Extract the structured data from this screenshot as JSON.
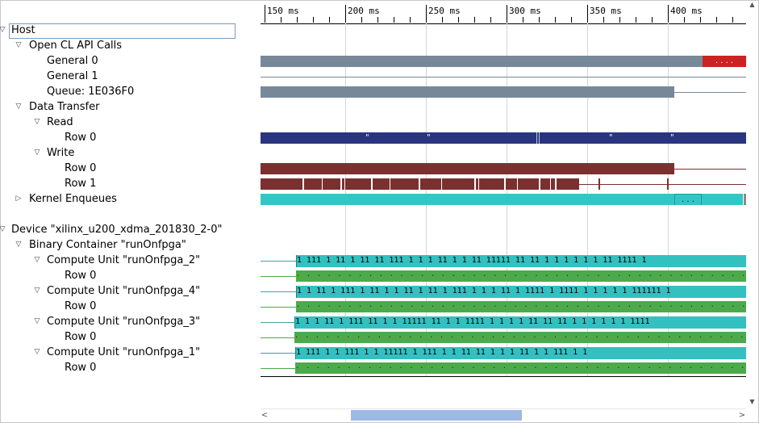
{
  "tree": {
    "host": "Host",
    "open_cl_api_calls": "Open CL API Calls",
    "general_0": "General 0",
    "general_1": "General 1",
    "queue": "Queue: 1E036F0",
    "data_transfer": "Data Transfer",
    "read": "Read",
    "read_row_0": "Row 0",
    "write": "Write",
    "write_row_0": "Row 0",
    "write_row_1": "Row 1",
    "kernel_enqueues": "Kernel Enqueues",
    "device": "Device \"xilinx_u200_xdma_201830_2-0\"",
    "binary_container": "Binary Container \"runOnfpga\"",
    "cu_2": "Compute Unit \"runOnfpga_2\"",
    "cu_2_row": "Row 0",
    "cu_4": "Compute Unit \"runOnfpga_4\"",
    "cu_4_row": "Row 0",
    "cu_3": "Compute Unit \"runOnfpga_3\"",
    "cu_3_row": "Row 0",
    "cu_1": "Compute Unit \"runOnfpga_1\"",
    "cu_1_row": "Row 0"
  },
  "ruler": {
    "unit_labels": [
      "150 ms",
      "200 ms",
      "250 ms",
      "300 ms",
      "350 ms",
      "400 ms"
    ]
  },
  "bar_text": {
    "general_0_tail": ". . . .",
    "read_marks": [
      "\"",
      "\"",
      "\"",
      "\""
    ],
    "kernel_tail": ". . .",
    "cu_2": "1 111 1 11  1 11   11  111 1  1  1  11 1  1 11 11111 11 11 1 1 1 1 1 1 11 1111 1",
    "cu_4": "1 1 11 1 111 1 11 1 1 11 1 11 1 111 1 1 1 11 1 1111 1 1111 1 1 1 1 1 111111 1",
    "cu_3": "1 1 1 11 1 111 11 1 1  11111 11 1 1 1111  1 1 1 1 11 11 11  1 1  1 1 1 1 1111",
    "cu_1": "1 111 1 1 111    1 1 11111   1  111 1 1 11  11  1  1 1 11  1 1  111 1 1",
    "dots_row": ". . . . . . . . . . . . . . . . . . . . . . . . . . . . . . . . . . . . . . . . . . . . . . . . . . . . . . . . . . . . . . . . . . . . . . . . . . . . . . . . . . . . . . . . . . . . . . . ."
  },
  "colors": {
    "api": "#778899",
    "api_tail": "#cc2222",
    "read": "#2a3580",
    "write": "#7b3030",
    "kernel": "#33c6c6",
    "cu_teal": "#33c0c0",
    "cu_green": "#4caa4c",
    "line_green": "#4caa4c",
    "line_teal": "#4b9fa0",
    "grid": "#d6d6d6"
  },
  "scrollbar": {
    "left_arrow": "<",
    "right_arrow": ">"
  }
}
